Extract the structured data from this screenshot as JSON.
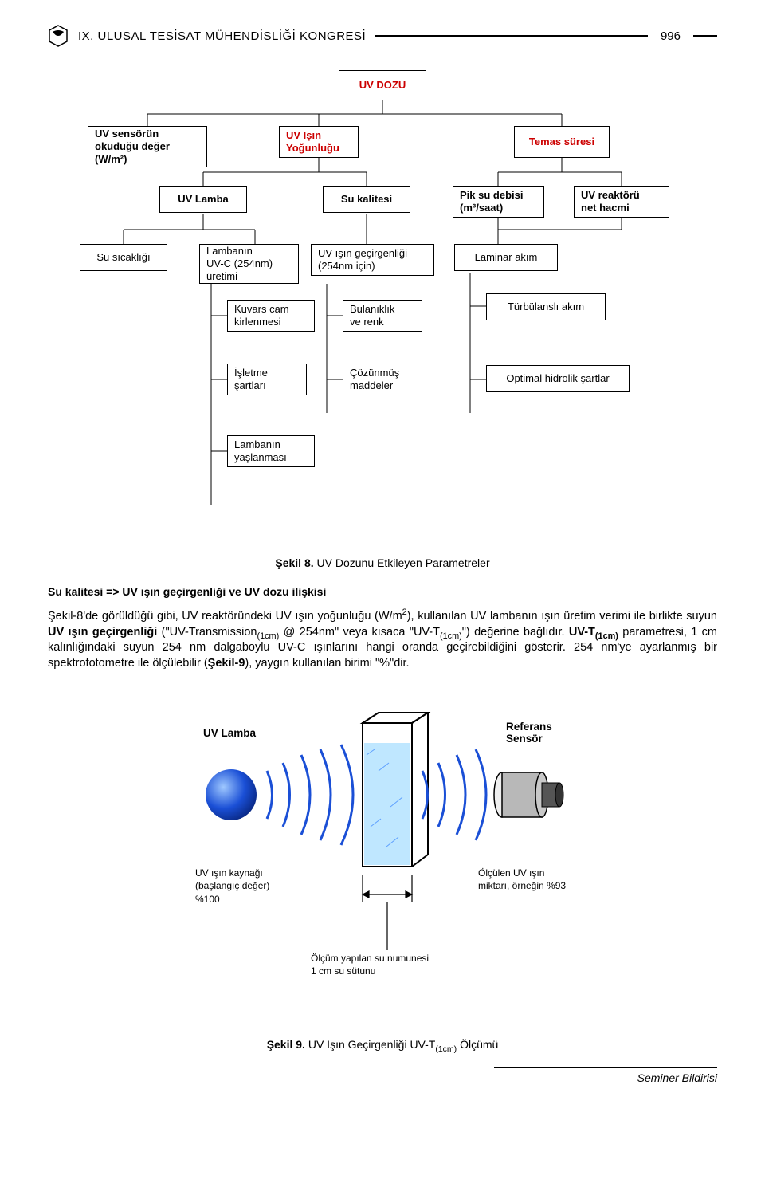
{
  "header": {
    "congress": "IX. ULUSAL TESİSAT MÜHENDİSLİĞİ KONGRESİ",
    "page_number": "996"
  },
  "fig8": {
    "root": "UV DOZU",
    "row1": {
      "sensor": "UV sensörün\nokuduğu değer\n(W/m²)",
      "intensity": "UV Işın\nYoğunluğu",
      "contact": "Temas süresi"
    },
    "row2": {
      "lamp": "UV Lamba",
      "water_quality": "Su kalitesi",
      "flow": "Pik su debisi\n(m³/saat)",
      "reactor_vol": "UV reaktörü\nnet hacmi"
    },
    "row3": {
      "temp": "Su sıcaklığı",
      "lamp_uvc": "Lambanın\nUV-C (254nm)\nüretimi",
      "transmittance": "UV ışın geçirgenliği\n(254nm için)",
      "laminar": "Laminar akım"
    },
    "row4": {
      "quartz": "Kuvars cam\nkirlenmesi",
      "turbidity": "Bulanıklık\nve renk",
      "turbulent": "Türbülanslı akım"
    },
    "row5": {
      "operating": "İşletme\nşartları",
      "dissolved": "Çözünmüş\nmaddeler",
      "hydraulic": "Optimal hidrolik şartlar"
    },
    "row6": {
      "aging": "Lambanın\nyaşlanması"
    },
    "caption_bold": "Şekil 8.",
    "caption_rest": " UV Dozunu Etkileyen Parametreler"
  },
  "subheading": "Su kalitesi => UV ışın geçirgenliği ve UV dozu ilişkisi",
  "paragraph_html": "Şekil-8'de görüldüğü gibi, UV reaktöründeki UV ışın yoğunluğu (W/m<sup>2</sup>), kullanılan UV lambanın ışın üretim verimi ile birlikte suyun <b>UV ışın geçirgenliği</b> (\"UV-Transmission<sub>(1cm)</sub> @ 254nm\" veya kısaca \"UV-T<sub>(1cm)</sub>\") değerine bağlıdır. <b>UV-T<sub>(1cm)</sub></b> parametresi, 1 cm kalınlığındaki suyun 254 nm dalgaboylu UV-C ışınlarını hangi oranda geçirebildiğini gösterir. 254 nm'ye ayarlanmış bir spektrofotometre ile ölçülebilir (<b>Şekil-9</b>), yaygın kullanılan birimi \"%\"dir.",
  "fig9": {
    "uv_lamp_label": "UV Lamba",
    "ref_sensor_label": "Referans\nSensör",
    "source_label": "UV ışın kaynağı\n(başlangıç değer)\n%100",
    "measured_label": "Ölçülen UV ışın\nmiktarı, örneğin %93",
    "sample_label": "Ölçüm yapılan su numunesi\n1 cm su sütunu",
    "caption_bold": "Şekil 9.",
    "caption_rest": " UV Işın Geçirgenliği UV-T",
    "caption_sub": "(1cm)",
    "caption_tail": " Ölçümü",
    "colors": {
      "uv_blue": "#1a4fd6",
      "uv_blue_light": "#5fa0ff",
      "water_fill": "#bfe7ff",
      "sensor_gray": "#b8b8b8",
      "sensor_dark": "#555555"
    }
  },
  "footer": "Seminer Bildirisi"
}
